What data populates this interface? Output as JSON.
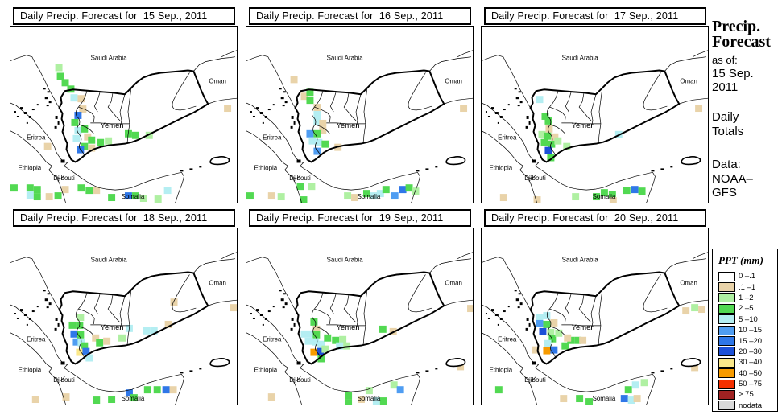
{
  "panels": [
    {
      "title": "Daily Precip. Forecast for  15 Sep., 2011",
      "cells": [
        [
          56,
          47,
          2
        ],
        [
          58,
          58,
          3
        ],
        [
          64,
          66,
          3
        ],
        [
          71,
          74,
          3
        ],
        [
          75,
          85,
          4
        ],
        [
          84,
          86,
          1
        ],
        [
          86,
          99,
          1
        ],
        [
          80,
          107,
          6
        ],
        [
          76,
          116,
          3
        ],
        [
          80,
          126,
          4
        ],
        [
          88,
          124,
          3
        ],
        [
          92,
          134,
          1
        ],
        [
          78,
          136,
          4
        ],
        [
          88,
          146,
          3
        ],
        [
          97,
          138,
          3
        ],
        [
          97,
          148,
          1
        ],
        [
          83,
          150,
          6
        ],
        [
          108,
          141,
          3
        ],
        [
          118,
          139,
          2
        ],
        [
          143,
          130,
          3
        ],
        [
          152,
          132,
          3
        ],
        [
          169,
          132,
          2
        ],
        [
          267,
          98,
          1
        ],
        [
          42,
          146,
          1
        ],
        [
          0,
          198,
          3
        ],
        [
          20,
          198,
          3
        ],
        [
          20,
          207,
          4
        ],
        [
          29,
          200,
          3
        ],
        [
          29,
          209,
          3
        ],
        [
          44,
          209,
          1
        ],
        [
          55,
          208,
          3
        ],
        [
          64,
          200,
          1
        ],
        [
          84,
          198,
          3
        ],
        [
          94,
          201,
          3
        ],
        [
          103,
          201,
          1
        ],
        [
          122,
          210,
          3
        ],
        [
          143,
          208,
          6
        ],
        [
          152,
          208,
          3
        ],
        [
          162,
          211,
          2
        ],
        [
          180,
          212,
          2
        ],
        [
          192,
          201,
          4
        ]
      ]
    },
    {
      "title": "Daily Precip. Forecast for  16 Sep., 2011",
      "cells": [
        [
          55,
          62,
          1
        ],
        [
          68,
          83,
          1
        ],
        [
          75,
          78,
          3
        ],
        [
          75,
          88,
          3
        ],
        [
          84,
          97,
          1
        ],
        [
          84,
          106,
          4
        ],
        [
          84,
          115,
          4
        ],
        [
          91,
          117,
          1
        ],
        [
          91,
          126,
          1
        ],
        [
          75,
          130,
          5
        ],
        [
          84,
          130,
          3
        ],
        [
          78,
          139,
          4
        ],
        [
          86,
          141,
          4
        ],
        [
          94,
          143,
          3
        ],
        [
          84,
          152,
          5
        ],
        [
          110,
          147,
          1
        ],
        [
          267,
          98,
          1
        ],
        [
          0,
          208,
          3
        ],
        [
          27,
          208,
          1
        ],
        [
          39,
          209,
          2
        ],
        [
          63,
          196,
          3
        ],
        [
          77,
          196,
          2
        ],
        [
          67,
          213,
          3
        ],
        [
          122,
          208,
          2
        ],
        [
          131,
          210,
          1
        ],
        [
          146,
          205,
          3
        ],
        [
          155,
          208,
          4
        ],
        [
          163,
          205,
          4
        ],
        [
          170,
          200,
          3
        ],
        [
          181,
          208,
          5
        ],
        [
          191,
          200,
          6
        ],
        [
          199,
          198,
          3
        ],
        [
          207,
          202,
          2
        ]
      ]
    },
    {
      "title": "Daily Precip. Forecast for  17 Sep., 2011",
      "cells": [
        [
          68,
          87,
          4
        ],
        [
          75,
          108,
          3
        ],
        [
          79,
          114,
          3
        ],
        [
          80,
          124,
          1
        ],
        [
          71,
          131,
          2
        ],
        [
          78,
          133,
          3
        ],
        [
          74,
          141,
          3
        ],
        [
          83,
          143,
          3
        ],
        [
          87,
          134,
          1
        ],
        [
          91,
          139,
          2
        ],
        [
          79,
          151,
          7
        ],
        [
          82,
          160,
          3
        ],
        [
          102,
          146,
          2
        ],
        [
          167,
          131,
          4
        ],
        [
          267,
          98,
          1
        ],
        [
          23,
          210,
          1
        ],
        [
          65,
          213,
          1
        ],
        [
          113,
          209,
          2
        ],
        [
          139,
          209,
          3
        ],
        [
          149,
          204,
          3
        ],
        [
          159,
          206,
          3
        ],
        [
          177,
          201,
          3
        ],
        [
          187,
          200,
          6
        ],
        [
          196,
          202,
          3
        ],
        [
          160,
          214,
          1
        ]
      ]
    },
    {
      "title": "Daily Precip. Forecast for  18 Sep., 2011",
      "cells": [
        [
          83,
          107,
          2
        ],
        [
          73,
          117,
          3
        ],
        [
          82,
          117,
          3
        ],
        [
          75,
          128,
          6
        ],
        [
          83,
          129,
          3
        ],
        [
          78,
          138,
          5
        ],
        [
          84,
          139,
          4
        ],
        [
          88,
          143,
          3
        ],
        [
          82,
          151,
          8
        ],
        [
          90,
          150,
          6
        ],
        [
          94,
          158,
          4
        ],
        [
          102,
          133,
          1
        ],
        [
          107,
          139,
          3
        ],
        [
          116,
          137,
          1
        ],
        [
          135,
          133,
          2
        ],
        [
          144,
          121,
          4
        ],
        [
          166,
          124,
          4
        ],
        [
          175,
          124,
          4
        ],
        [
          193,
          116,
          1
        ],
        [
          200,
          88,
          1
        ],
        [
          274,
          95,
          1
        ],
        [
          27,
          210,
          1
        ],
        [
          65,
          207,
          1
        ],
        [
          103,
          211,
          3
        ],
        [
          122,
          210,
          3
        ],
        [
          144,
          202,
          6
        ],
        [
          150,
          208,
          3
        ],
        [
          167,
          198,
          3
        ],
        [
          179,
          198,
          3
        ],
        [
          190,
          198,
          6
        ],
        [
          199,
          198,
          1
        ]
      ]
    },
    {
      "title": "Daily Precip. Forecast for  19 Sep., 2011",
      "cells": [
        [
          80,
          113,
          3
        ],
        [
          83,
          122,
          1
        ],
        [
          68,
          128,
          4
        ],
        [
          77,
          128,
          4
        ],
        [
          83,
          129,
          3
        ],
        [
          73,
          137,
          4
        ],
        [
          82,
          138,
          4
        ],
        [
          89,
          141,
          4
        ],
        [
          97,
          133,
          3
        ],
        [
          107,
          136,
          3
        ],
        [
          116,
          135,
          2
        ],
        [
          112,
          143,
          4
        ],
        [
          121,
          143,
          2
        ],
        [
          80,
          151,
          9
        ],
        [
          88,
          150,
          7
        ],
        [
          89,
          159,
          3
        ],
        [
          94,
          147,
          2
        ],
        [
          166,
          122,
          3
        ],
        [
          179,
          125,
          1
        ],
        [
          263,
          169,
          1
        ],
        [
          276,
          96,
          1
        ],
        [
          27,
          207,
          1
        ],
        [
          123,
          205,
          3
        ],
        [
          123,
          214,
          3
        ],
        [
          139,
          210,
          1
        ],
        [
          149,
          199,
          2
        ],
        [
          158,
          212,
          4
        ],
        [
          167,
          212,
          3
        ],
        [
          180,
          192,
          2
        ],
        [
          188,
          198,
          5
        ]
      ]
    },
    {
      "title": "Daily Precip. Forecast for  20 Sep., 2011",
      "cells": [
        [
          68,
          107,
          4
        ],
        [
          77,
          105,
          4
        ],
        [
          68,
          115,
          5
        ],
        [
          77,
          116,
          3
        ],
        [
          86,
          114,
          1
        ],
        [
          72,
          125,
          7
        ],
        [
          82,
          126,
          2
        ],
        [
          84,
          134,
          3
        ],
        [
          92,
          127,
          2
        ],
        [
          78,
          140,
          4
        ],
        [
          77,
          149,
          9
        ],
        [
          86,
          148,
          6
        ],
        [
          63,
          148,
          1
        ],
        [
          107,
          136,
          3
        ],
        [
          116,
          136,
          3
        ],
        [
          103,
          133,
          1
        ],
        [
          122,
          136,
          1
        ],
        [
          100,
          143,
          3
        ],
        [
          251,
          99,
          1
        ],
        [
          262,
          95,
          2
        ],
        [
          271,
          97,
          1
        ],
        [
          262,
          170,
          1
        ],
        [
          17,
          198,
          3
        ],
        [
          179,
          198,
          3
        ],
        [
          188,
          192,
          4
        ],
        [
          199,
          189,
          2
        ],
        [
          98,
          209,
          1
        ],
        [
          118,
          209,
          3
        ],
        [
          130,
          213,
          3
        ],
        [
          174,
          209,
          6
        ],
        [
          183,
          211,
          4
        ],
        [
          190,
          209,
          1
        ]
      ]
    }
  ],
  "map": {
    "labels": [
      "Saudi Arabia",
      "Oman",
      "Yemen",
      "Eritrea",
      "Ethiopia",
      "Djibouti",
      "Somalia"
    ]
  },
  "sidebar": {
    "heading_line1": "Precip.",
    "heading_line2": "Forecast",
    "asof_label": "as of:",
    "asof_date": "15 Sep.",
    "asof_year": "2011",
    "totals_line1": "Daily",
    "totals_line2": "Totals",
    "data_label": "Data:",
    "data_line1": "NOAA–",
    "data_line2": "GFS"
  },
  "legend": {
    "title": "PPT (mm)",
    "entries": [
      {
        "label": "0 –.1",
        "color": "#ffffff"
      },
      {
        "label": ".1 –1",
        "color": "#e9d3a9"
      },
      {
        "label": "1 –2",
        "color": "#aff0a2"
      },
      {
        "label": "2 –5",
        "color": "#52d952"
      },
      {
        "label": "5 –10",
        "color": "#b4eef2"
      },
      {
        "label": "10 –15",
        "color": "#4f9df2"
      },
      {
        "label": "15 –20",
        "color": "#2f77e8"
      },
      {
        "label": "20 –30",
        "color": "#1c50d8"
      },
      {
        "label": "30 –40",
        "color": "#fbe88a"
      },
      {
        "label": "40 –50",
        "color": "#f79b00"
      },
      {
        "label": "50 –75",
        "color": "#f53000"
      },
      {
        "label": "> 75",
        "color": "#9f2222"
      },
      {
        "label": "nodata",
        "color": "#d9d9d9"
      }
    ]
  }
}
